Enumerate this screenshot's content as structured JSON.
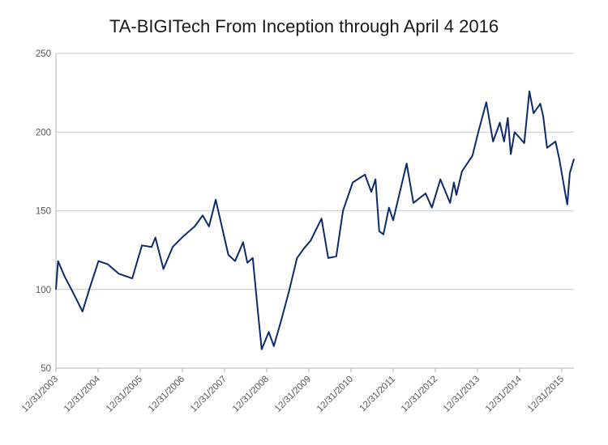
{
  "chart_data": {
    "type": "line",
    "title": "TA-BIGITech From Inception through April 4 2016",
    "xlabel": "",
    "ylabel": "",
    "ylim": [
      50,
      250
    ],
    "yticks": [
      50,
      100,
      150,
      200,
      250
    ],
    "xlim": [
      2004.0,
      2016.29
    ],
    "xtick_labels": [
      "12/31/2003",
      "12/31/2004",
      "12/31/2005",
      "12/31/2006",
      "12/31/2007",
      "12/31/2008",
      "12/31/2009",
      "12/31/2010",
      "12/31/2011",
      "12/31/2012",
      "12/31/2013",
      "12/31/2014",
      "12/31/2015"
    ],
    "grid": true,
    "legend": "none",
    "line_color": "#0d2a6b",
    "series": [
      {
        "name": "TA-BIGITech",
        "x": [
          2004.0,
          2004.05,
          2004.21,
          2004.37,
          2004.63,
          2004.79,
          2005.01,
          2005.23,
          2005.49,
          2005.81,
          2006.04,
          2006.27,
          2006.36,
          2006.55,
          2006.77,
          2007.03,
          2007.29,
          2007.48,
          2007.63,
          2007.79,
          2007.92,
          2008.09,
          2008.25,
          2008.44,
          2008.54,
          2008.67,
          2008.79,
          2008.88,
          2009.05,
          2009.17,
          2009.34,
          2009.53,
          2009.72,
          2009.88,
          2010.04,
          2010.3,
          2010.46,
          2010.65,
          2010.81,
          2011.04,
          2011.33,
          2011.48,
          2011.58,
          2011.67,
          2011.77,
          2011.9,
          2012.0,
          2012.32,
          2012.48,
          2012.77,
          2012.92,
          2013.12,
          2013.35,
          2013.44,
          2013.5,
          2013.63,
          2013.88,
          2014.02,
          2014.21,
          2014.37,
          2014.53,
          2014.63,
          2014.72,
          2014.79,
          2014.88,
          2015.11,
          2015.23,
          2015.33,
          2015.49,
          2015.56,
          2015.65,
          2015.85,
          2015.94,
          2016.07,
          2016.13,
          2016.19,
          2016.29
        ],
        "values": [
          100,
          118,
          108,
          100,
          86,
          100,
          118,
          116,
          110,
          107,
          128,
          127,
          133,
          113,
          127,
          134,
          140,
          147,
          140,
          157,
          142,
          122,
          118,
          130,
          117,
          120,
          86,
          62,
          73,
          64,
          80,
          99,
          120,
          126,
          131,
          145,
          120,
          121,
          150,
          168,
          173,
          162,
          170,
          137,
          135,
          152,
          144,
          180,
          155,
          161,
          152,
          170,
          155,
          168,
          160,
          175,
          185,
          200,
          219,
          194,
          206,
          194,
          209,
          186,
          200,
          193,
          226,
          212,
          218,
          210,
          190,
          194,
          183,
          163,
          154,
          174,
          183
        ]
      }
    ]
  }
}
